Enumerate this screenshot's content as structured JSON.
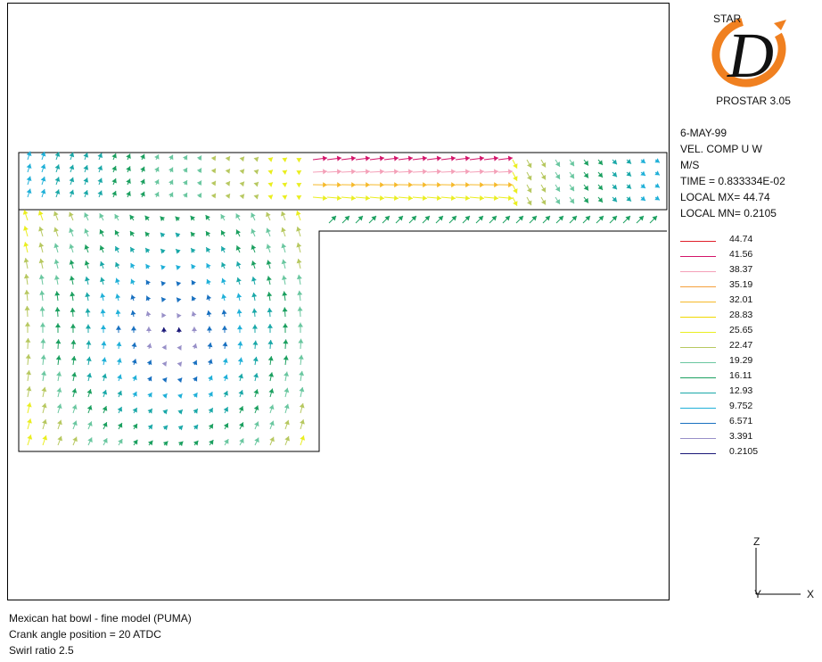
{
  "logo": {
    "star": "STAR",
    "letter": "D",
    "version": "PROSTAR 3.05"
  },
  "info": {
    "date": "6-MAY-99",
    "quantity": "VEL. COMP  U W",
    "units": "M/S",
    "time": "TIME = 0.833334E-02",
    "local_max": "LOCAL MX=  44.74",
    "local_min": "LOCAL MN= 0.2105"
  },
  "legend": {
    "levels": [
      {
        "value": "44.74",
        "color": "#e0202a"
      },
      {
        "value": "41.56",
        "color": "#d4146a"
      },
      {
        "value": "38.37",
        "color": "#f4a0b8"
      },
      {
        "value": "35.19",
        "color": "#f5a03c"
      },
      {
        "value": "32.01",
        "color": "#f6b92a"
      },
      {
        "value": "28.83",
        "color": "#f0d800"
      },
      {
        "value": "25.65",
        "color": "#eaee20"
      },
      {
        "value": "22.47",
        "color": "#b7c860"
      },
      {
        "value": "19.29",
        "color": "#6ac7a0"
      },
      {
        "value": "16.11",
        "color": "#1ca060"
      },
      {
        "value": "12.93",
        "color": "#1aa8a8"
      },
      {
        "value": "9.752",
        "color": "#20b0d8"
      },
      {
        "value": "6.571",
        "color": "#1870c0"
      },
      {
        "value": "3.391",
        "color": "#9890c8"
      },
      {
        "value": "0.2105",
        "color": "#1a1878"
      }
    ]
  },
  "axes": {
    "vertical": "Z",
    "horizontal": "X",
    "depth": "Y"
  },
  "caption": {
    "line1": "Mexican hat bowl - fine model (PUMA)",
    "line2": "Crank angle position = 20  ATDC",
    "line3": "Swirl ratio 2.5"
  }
}
